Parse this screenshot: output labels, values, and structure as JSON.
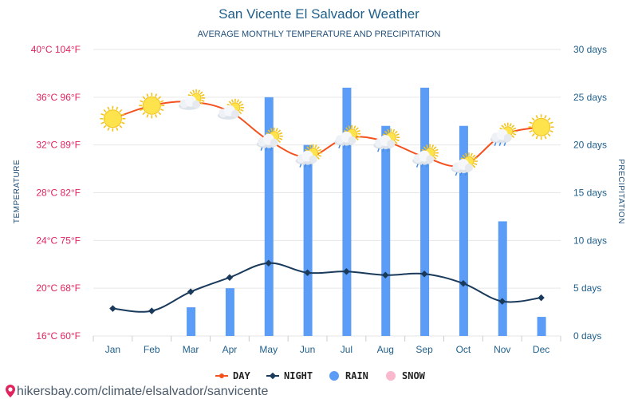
{
  "header": {
    "title": "San Vicente El Salvador Weather",
    "subtitle": "AVERAGE MONTHLY TEMPERATURE AND PRECIPITATION"
  },
  "axes": {
    "left_label": "TEMPERATURE",
    "right_label": "PRECIPITATION",
    "left_ticks": [
      "16°C 60°F",
      "20°C 68°F",
      "24°C 75°F",
      "28°C 82°F",
      "32°C 89°F",
      "36°C 96°F",
      "40°C 104°F"
    ],
    "right_ticks": [
      "0 days",
      "5 days",
      "10 days",
      "15 days",
      "20 days",
      "25 days",
      "30 days"
    ]
  },
  "legend": [
    {
      "label": "DAY",
      "color": "#f4511e",
      "shape": "line-dot"
    },
    {
      "label": "NIGHT",
      "color": "#1a3a5c",
      "shape": "line-diamond"
    },
    {
      "label": "RAIN",
      "color": "#5b9cf6",
      "shape": "circle"
    },
    {
      "label": "SNOW",
      "color": "#f9b8cb",
      "shape": "circle"
    }
  ],
  "footer": {
    "watermark": "hikersbay.com/climate/elsalvador/sanvicente"
  },
  "colors": {
    "day": "#f4511e",
    "night": "#1a3a5c",
    "rain": "#5b9cf6",
    "grid": "#e6e6e6",
    "left_axis": "#e0245e",
    "right_axis": "#1f5f8b"
  },
  "chart_data": {
    "type": "bar",
    "categories": [
      "Jan",
      "Feb",
      "Mar",
      "Apr",
      "May",
      "Jun",
      "Jul",
      "Aug",
      "Sep",
      "Oct",
      "Nov",
      "Dec"
    ],
    "series": [
      {
        "name": "DAY",
        "type": "line",
        "axis": "temperature",
        "values": [
          34.2,
          35.3,
          35.6,
          34.8,
          32.4,
          31.0,
          32.6,
          32.3,
          31.0,
          30.3,
          32.8,
          33.5
        ]
      },
      {
        "name": "NIGHT",
        "type": "line",
        "axis": "temperature",
        "values": [
          18.3,
          18.1,
          19.7,
          20.9,
          22.1,
          21.3,
          21.4,
          21.1,
          21.2,
          20.4,
          18.9,
          19.2
        ]
      },
      {
        "name": "RAIN",
        "type": "bar",
        "axis": "precipitation",
        "values": [
          0,
          0,
          3,
          5,
          25,
          20,
          26,
          22,
          26,
          22,
          12,
          2
        ]
      }
    ],
    "weather_icons": [
      "sun",
      "sun",
      "sun-cloud",
      "sun-cloud",
      "sun-cloud-rain",
      "sun-cloud-rain",
      "sun-cloud-rain",
      "sun-cloud-rain",
      "sun-cloud-rain",
      "sun-cloud-rain",
      "sun-cloud-rain",
      "sun"
    ],
    "ylim_temperature": [
      16,
      40
    ],
    "ylim_precipitation": [
      0,
      30
    ],
    "grid": true,
    "legend_position": "bottom"
  }
}
